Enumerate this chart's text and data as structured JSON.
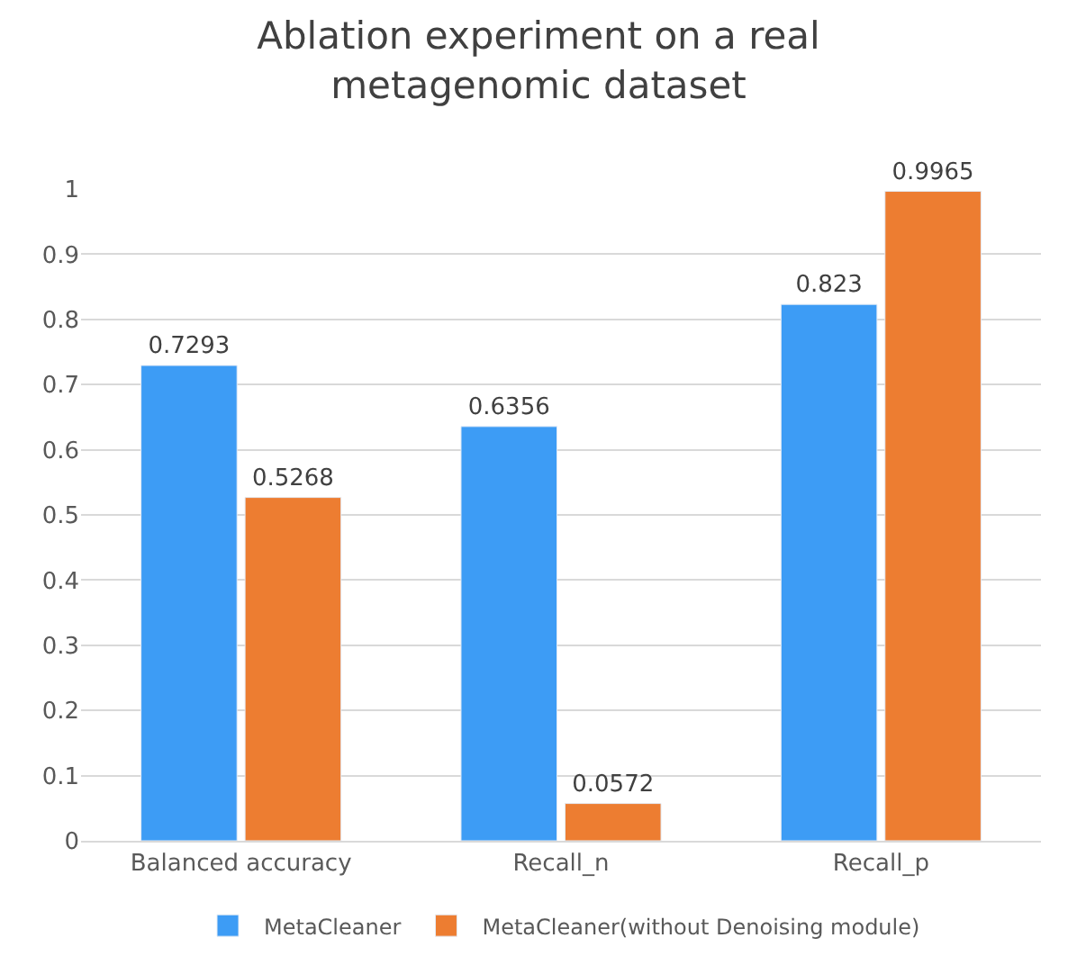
{
  "chart_data": {
    "type": "bar",
    "title": "Ablation experiment on a real metagenomic dataset",
    "categories": [
      "Balanced accuracy",
      "Recall_n",
      "Recall_p"
    ],
    "series": [
      {
        "name": "MetaCleaner",
        "color": "#3d9cf5",
        "values": [
          0.7293,
          0.6356,
          0.823
        ]
      },
      {
        "name": "MetaCleaner(without Denoising module)",
        "color": "#ed7d31",
        "values": [
          0.5268,
          0.0572,
          0.9965
        ]
      }
    ],
    "data_labels": true,
    "ylim": [
      0,
      1
    ],
    "yticks": [
      0,
      0.1,
      0.2,
      0.3,
      0.4,
      0.5,
      0.6,
      0.7,
      0.8,
      0.9,
      1
    ],
    "grid": "y",
    "legend": "bottom"
  }
}
